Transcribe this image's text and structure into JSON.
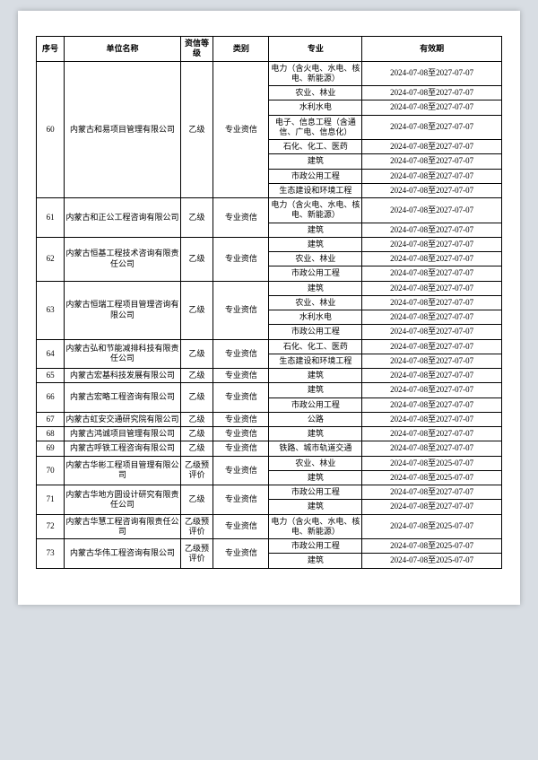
{
  "headers": {
    "seq": "序号",
    "name": "单位名称",
    "grade": "资信等级",
    "cat": "类别",
    "spec": "专业",
    "valid": "有效期"
  },
  "dateA": "2024-07-08至2027-07-07",
  "dateB": "2024-07-08至2025-07-07",
  "cat": "专业资信",
  "gradeB": "乙级",
  "gradeP": "乙级预评价",
  "groups": [
    {
      "seq": "60",
      "name": "内蒙古和易项目管理有限公司",
      "grade": "B",
      "specs": [
        {
          "t": "电力（含火电、水电、核电、新能源）",
          "d": "A"
        },
        {
          "t": "农业、林业",
          "d": "A"
        },
        {
          "t": "水利水电",
          "d": "A"
        },
        {
          "t": "电子、信息工程（含通信、广电、信息化）",
          "d": "A"
        },
        {
          "t": "石化、化工、医药",
          "d": "A"
        },
        {
          "t": "建筑",
          "d": "A"
        },
        {
          "t": "市政公用工程",
          "d": "A"
        },
        {
          "t": "生态建设和环境工程",
          "d": "A"
        }
      ]
    },
    {
      "seq": "61",
      "name": "内蒙古和正公工程咨询有限公司",
      "grade": "B",
      "specs": [
        {
          "t": "电力（含火电、水电、核电、新能源）",
          "d": "A"
        },
        {
          "t": "建筑",
          "d": "A"
        }
      ]
    },
    {
      "seq": "62",
      "name": "内蒙古恒基工程技术咨询有限责任公司",
      "grade": "B",
      "specs": [
        {
          "t": "建筑",
          "d": "A"
        },
        {
          "t": "农业、林业",
          "d": "A"
        },
        {
          "t": "市政公用工程",
          "d": "A"
        }
      ]
    },
    {
      "seq": "63",
      "name": "内蒙古恒瑞工程项目管理咨询有限公司",
      "grade": "B",
      "specs": [
        {
          "t": "建筑",
          "d": "A"
        },
        {
          "t": "农业、林业",
          "d": "A"
        },
        {
          "t": "水利水电",
          "d": "A"
        },
        {
          "t": "市政公用工程",
          "d": "A"
        }
      ]
    },
    {
      "seq": "64",
      "name": "内蒙古弘和节能减排科技有限责任公司",
      "grade": "B",
      "specs": [
        {
          "t": "石化、化工、医药",
          "d": "A"
        },
        {
          "t": "生态建设和环境工程",
          "d": "A"
        }
      ]
    },
    {
      "seq": "65",
      "name": "内蒙古宏基科技发展有限公司",
      "grade": "B",
      "specs": [
        {
          "t": "建筑",
          "d": "A"
        }
      ]
    },
    {
      "seq": "66",
      "name": "内蒙古宏略工程咨询有限公司",
      "grade": "B",
      "specs": [
        {
          "t": "建筑",
          "d": "A"
        },
        {
          "t": "市政公用工程",
          "d": "A"
        }
      ]
    },
    {
      "seq": "67",
      "name": "内蒙古虹安交通研究院有限公司",
      "grade": "B",
      "specs": [
        {
          "t": "公路",
          "d": "A"
        }
      ]
    },
    {
      "seq": "68",
      "name": "内蒙古鸿诚项目管理有限公司",
      "grade": "B",
      "specs": [
        {
          "t": "建筑",
          "d": "A"
        }
      ]
    },
    {
      "seq": "69",
      "name": "内蒙古呼铁工程咨询有限公司",
      "grade": "B",
      "specs": [
        {
          "t": "铁路、城市轨道交通",
          "d": "A"
        }
      ]
    },
    {
      "seq": "70",
      "name": "内蒙古华彬工程项目管理有限公司",
      "grade": "P",
      "specs": [
        {
          "t": "农业、林业",
          "d": "B"
        },
        {
          "t": "建筑",
          "d": "B"
        }
      ]
    },
    {
      "seq": "71",
      "name": "内蒙古华地方圆设计研究有限责任公司",
      "grade": "B",
      "specs": [
        {
          "t": "市政公用工程",
          "d": "A"
        },
        {
          "t": "建筑",
          "d": "A"
        }
      ]
    },
    {
      "seq": "72",
      "name": "内蒙古华慧工程咨询有限责任公司",
      "grade": "P",
      "specs": [
        {
          "t": "电力（含火电、水电、核电、新能源）",
          "d": "B"
        }
      ]
    },
    {
      "seq": "73",
      "name": "内蒙古华伟工程咨询有限公司",
      "grade": "P",
      "specs": [
        {
          "t": "市政公用工程",
          "d": "B"
        },
        {
          "t": "建筑",
          "d": "B"
        }
      ]
    }
  ]
}
